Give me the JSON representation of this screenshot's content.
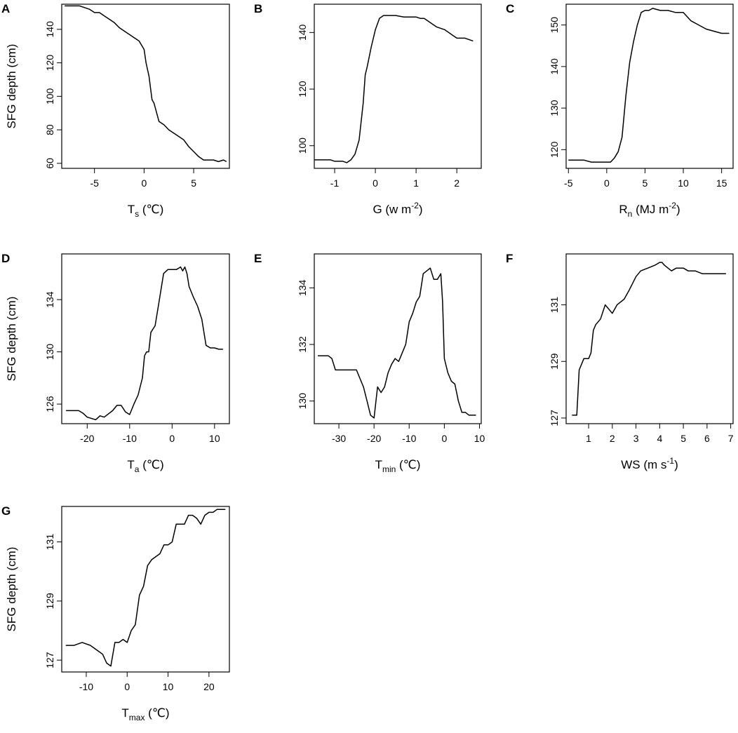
{
  "chart_data": [
    {
      "type": "line",
      "panel": "A",
      "xlabel": {
        "base": "T",
        "sub": "s",
        "sup": "",
        "unit": " (℃)"
      },
      "ylabel": "SFG depth (cm)",
      "xlim": [
        -8.3,
        8.6
      ],
      "ylim": [
        57,
        155
      ],
      "xticks": [
        -5,
        0,
        5
      ],
      "yticks": [
        60,
        80,
        100,
        120,
        140
      ],
      "series": [
        {
          "name": "SFG depth",
          "x": [
            -8,
            -6.5,
            -6,
            -5.5,
            -5,
            -4.5,
            -4,
            -3.5,
            -3,
            -2.5,
            -2,
            -1.5,
            -1,
            -0.5,
            0,
            0.2,
            0.5,
            0.8,
            1,
            1.5,
            2,
            2.5,
            3,
            3.5,
            4,
            4.5,
            5,
            5.5,
            6,
            7,
            7.5,
            8,
            8.3
          ],
          "y": [
            154,
            154,
            153,
            152,
            150,
            150,
            148,
            146,
            144,
            141,
            139,
            137,
            135,
            133,
            128,
            120,
            112,
            98,
            96,
            85,
            83,
            80,
            78,
            76,
            74,
            70,
            67,
            64,
            62,
            62,
            61,
            62,
            61
          ]
        }
      ]
    },
    {
      "type": "line",
      "panel": "B",
      "xlabel": {
        "base": "G (w m",
        "sub": "",
        "sup": "-2",
        "unit": ")"
      },
      "ylabel": "",
      "xlim": [
        -1.5,
        2.6
      ],
      "ylim": [
        92,
        150
      ],
      "xticks": [
        -1,
        0,
        1,
        2
      ],
      "yticks": [
        100,
        120,
        140
      ],
      "series": [
        {
          "name": "SFG depth",
          "x": [
            -1.5,
            -1.1,
            -1.0,
            -0.8,
            -0.7,
            -0.6,
            -0.5,
            -0.4,
            -0.3,
            -0.25,
            -0.2,
            -0.1,
            0,
            0.1,
            0.2,
            0.3,
            0.5,
            0.7,
            1.0,
            1.1,
            1.2,
            1.3,
            1.5,
            1.7,
            1.9,
            2.0,
            2.2,
            2.4
          ],
          "y": [
            95,
            95,
            94.5,
            94.5,
            94,
            95,
            97,
            102,
            115,
            125,
            128,
            135,
            141,
            145,
            146,
            146,
            146,
            145.5,
            145.5,
            145,
            145,
            144,
            142,
            141,
            139,
            138,
            138,
            137
          ]
        }
      ]
    },
    {
      "type": "line",
      "panel": "C",
      "xlabel": {
        "base": "R",
        "sub": "n",
        "sup": "-2",
        "unit": " (MJ m"
      },
      "ylabel": "",
      "xlim": [
        -5.3,
        16.5
      ],
      "ylim": [
        115.5,
        155
      ],
      "xticks": [
        -5,
        0,
        5,
        10,
        15
      ],
      "yticks": [
        120,
        130,
        140,
        150
      ],
      "series": [
        {
          "name": "SFG depth",
          "x": [
            -5,
            -3,
            -2,
            -1,
            0,
            0.5,
            1,
            1.5,
            2,
            2.5,
            3,
            3.5,
            4,
            4.5,
            5,
            5.5,
            6,
            7,
            8,
            9,
            10,
            10.5,
            11,
            12,
            13,
            14,
            15,
            15.5,
            16
          ],
          "y": [
            117.5,
            117.5,
            117,
            117,
            117,
            117,
            118,
            119.5,
            123,
            133,
            141,
            146,
            150,
            153,
            153.5,
            153.5,
            154,
            153.5,
            153.5,
            153,
            153,
            152,
            151,
            150,
            149,
            148.5,
            148,
            148,
            148
          ]
        }
      ]
    },
    {
      "type": "line",
      "panel": "D",
      "xlabel": {
        "base": "T",
        "sub": "a",
        "sup": "",
        "unit": " (℃)"
      },
      "ylabel": "SFG depth (cm)",
      "xlim": [
        -26,
        13.5
      ],
      "ylim": [
        124.5,
        137.5
      ],
      "xticks": [
        -20,
        -10,
        0,
        10
      ],
      "yticks": [
        126,
        130,
        134
      ],
      "series": [
        {
          "name": "SFG depth",
          "x": [
            -25,
            -22,
            -21,
            -20,
            -18,
            -17,
            -16,
            -14,
            -13,
            -12,
            -11,
            -10,
            -9,
            -8,
            -7,
            -6.5,
            -6,
            -5.5,
            -5,
            -4,
            -3,
            -2,
            -1,
            0,
            1,
            2,
            2.5,
            3,
            3.5,
            4,
            5,
            6,
            7,
            8,
            9,
            10,
            11,
            12
          ],
          "y": [
            125.5,
            125.5,
            125.3,
            125,
            124.8,
            125.1,
            125,
            125.5,
            125.9,
            125.9,
            125.4,
            125.2,
            126,
            126.7,
            128,
            129.7,
            130,
            130,
            131.5,
            132,
            134,
            136,
            136.3,
            136.3,
            136.3,
            136.5,
            136.2,
            136.5,
            136,
            135,
            134.2,
            133.5,
            132.5,
            130.5,
            130.3,
            130.3,
            130.2,
            130.2
          ]
        }
      ]
    },
    {
      "type": "line",
      "panel": "E",
      "xlabel": {
        "base": "T",
        "sub": "min",
        "sup": "",
        "unit": " (℃)"
      },
      "ylabel": "",
      "xlim": [
        -37,
        10.5
      ],
      "ylim": [
        129.2,
        135.2
      ],
      "xticks": [
        -30,
        -20,
        -10,
        0,
        10
      ],
      "yticks": [
        130,
        132,
        134
      ],
      "series": [
        {
          "name": "SFG depth",
          "x": [
            -36,
            -33,
            -32,
            -31,
            -29,
            -27,
            -25,
            -23,
            -22,
            -21,
            -20,
            -19,
            -18,
            -17,
            -16,
            -15,
            -14,
            -13,
            -12,
            -11,
            -10,
            -9,
            -8,
            -7,
            -6,
            -5,
            -4,
            -3,
            -2,
            -1,
            -0.5,
            0,
            1,
            2,
            3,
            4,
            5,
            6,
            7,
            8,
            9
          ],
          "y": [
            131.6,
            131.6,
            131.5,
            131.1,
            131.1,
            131.1,
            131.1,
            130.5,
            130,
            129.5,
            129.4,
            130.5,
            130.3,
            130.5,
            131,
            131.3,
            131.5,
            131.4,
            131.7,
            132,
            132.8,
            133.1,
            133.5,
            133.7,
            134.5,
            134.6,
            134.7,
            134.3,
            134.3,
            134.5,
            133.5,
            131.5,
            131,
            130.7,
            130.6,
            130,
            129.6,
            129.6,
            129.5,
            129.5,
            129.5
          ]
        }
      ]
    },
    {
      "type": "line",
      "panel": "F",
      "xlabel": {
        "base": "WS (m s",
        "sub": "",
        "sup": "-1",
        "unit": ")"
      },
      "ylabel": "",
      "xlim": [
        0.05,
        7.1
      ],
      "ylim": [
        126.8,
        132.8
      ],
      "xticks": [
        1,
        2,
        3,
        4,
        5,
        6,
        7
      ],
      "yticks": [
        127,
        129,
        131
      ],
      "series": [
        {
          "name": "SFG depth",
          "x": [
            0.3,
            0.4,
            0.5,
            0.6,
            0.8,
            1.0,
            1.1,
            1.2,
            1.3,
            1.5,
            1.7,
            1.8,
            2.0,
            2.2,
            2.5,
            2.7,
            3.0,
            3.2,
            3.5,
            3.8,
            4.0,
            4.1,
            4.2,
            4.5,
            4.7,
            5.0,
            5.2,
            5.5,
            5.8,
            6.0,
            6.3,
            6.8
          ],
          "y": [
            127.1,
            127.1,
            127.1,
            128.7,
            129.1,
            129.1,
            129.3,
            130.1,
            130.3,
            130.5,
            131,
            130.9,
            130.7,
            131,
            131.2,
            131.5,
            132,
            132.2,
            132.3,
            132.4,
            132.5,
            132.5,
            132.4,
            132.2,
            132.3,
            132.3,
            132.2,
            132.2,
            132.1,
            132.1,
            132.1,
            132.1
          ]
        }
      ]
    },
    {
      "type": "line",
      "panel": "G",
      "xlabel": {
        "base": "T",
        "sub": "max",
        "sup": "",
        "unit": " (℃)"
      },
      "ylabel": "SFG depth (cm)",
      "xlim": [
        -16,
        25
      ],
      "ylim": [
        126.6,
        132.2
      ],
      "xticks": [
        -10,
        0,
        10,
        20
      ],
      "yticks": [
        127,
        129,
        131
      ],
      "series": [
        {
          "name": "SFG depth",
          "x": [
            -15,
            -13,
            -11,
            -9,
            -7,
            -6,
            -5,
            -4,
            -3,
            -2,
            -1,
            0,
            1,
            2,
            3,
            4,
            5,
            6,
            7,
            8,
            9,
            10,
            11,
            12,
            13,
            14,
            15,
            16,
            17,
            18,
            19,
            20,
            21,
            22,
            23,
            24
          ],
          "y": [
            127.5,
            127.5,
            127.6,
            127.5,
            127.3,
            127.2,
            126.9,
            126.8,
            127.6,
            127.6,
            127.7,
            127.6,
            128,
            128.2,
            129.2,
            129.5,
            130.2,
            130.4,
            130.5,
            130.6,
            130.9,
            130.9,
            131,
            131.6,
            131.6,
            131.6,
            131.9,
            131.9,
            131.8,
            131.6,
            131.9,
            132,
            132,
            132.1,
            132.1,
            132.1
          ]
        }
      ]
    }
  ]
}
